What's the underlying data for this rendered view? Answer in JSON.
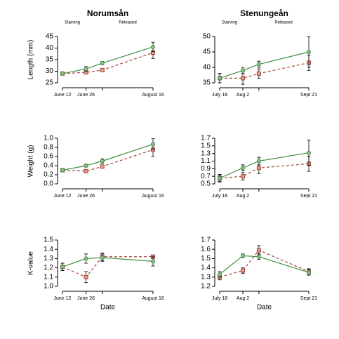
{
  "chart_data": [
    {
      "type": "line",
      "title": "Norumsån",
      "annotations": [
        "Starving",
        "Released"
      ],
      "ylabel": "Length (mm)",
      "categories": [
        "June 12",
        "June 26",
        null,
        "August 16"
      ],
      "series": [
        {
          "color": "#3f8f3f",
          "marker": "circle",
          "dashed": false,
          "values": [
            29,
            31,
            33.5,
            40.5
          ],
          "errors": [
            0.5,
            1,
            0.7,
            2
          ]
        },
        {
          "color": "#a4453c",
          "marker": "square",
          "dashed": true,
          "values": [
            29,
            29.5,
            30.5,
            38
          ],
          "errors": [
            0.5,
            0.7,
            0.7,
            2.5
          ]
        }
      ],
      "ylim": [
        25,
        45
      ],
      "yticks": [
        25,
        30,
        35,
        40,
        45
      ]
    },
    {
      "type": "line",
      "title": "Stenungeån",
      "annotations": [
        "Starving",
        "Released"
      ],
      "categories": [
        "July 18",
        "Aug 2",
        null,
        "Sept 21"
      ],
      "series": [
        {
          "color": "#3f8f3f",
          "marker": "circle",
          "dashed": false,
          "values": [
            36.5,
            39,
            41,
            45
          ],
          "errors": [
            1.5,
            1,
            1,
            5
          ]
        },
        {
          "color": "#a4453c",
          "marker": "square",
          "dashed": true,
          "values": [
            36.5,
            36.5,
            38,
            41.5
          ],
          "errors": [
            1.5,
            2,
            1.5,
            2.5
          ]
        }
      ],
      "ylim": [
        35,
        50
      ],
      "yticks": [
        35,
        40,
        45,
        50
      ]
    },
    {
      "type": "line",
      "ylabel": "Weight (g)",
      "categories": [
        "June 12",
        "June 26",
        null,
        "August 16"
      ],
      "series": [
        {
          "color": "#3f8f3f",
          "marker": "circle",
          "dashed": false,
          "values": [
            0.3,
            0.4,
            0.5,
            0.87
          ],
          "errors": [
            0.03,
            0.03,
            0.05,
            0.12
          ]
        },
        {
          "color": "#a4453c",
          "marker": "square",
          "dashed": true,
          "values": [
            0.3,
            0.28,
            0.38,
            0.75
          ],
          "errors": [
            0.03,
            0.03,
            0.03,
            0.15
          ]
        }
      ],
      "ylim": [
        0,
        1
      ],
      "yticks": [
        {
          "value": 0,
          "label": "0.0"
        },
        0.2,
        0.4,
        0.6,
        0.8,
        {
          "value": 1,
          "label": "1.0"
        }
      ]
    },
    {
      "type": "line",
      "categories": [
        "July 18",
        "Aug 2",
        null,
        "Sept 21"
      ],
      "series": [
        {
          "color": "#3f8f3f",
          "marker": "circle",
          "dashed": false,
          "values": [
            0.65,
            0.92,
            1.1,
            1.32
          ],
          "errors": [
            0.1,
            0.08,
            0.1,
            0.33
          ]
        },
        {
          "color": "#a4453c",
          "marker": "square",
          "dashed": true,
          "values": [
            0.65,
            0.7,
            0.92,
            1.03
          ],
          "errors": [
            0.08,
            0.1,
            0.15,
            0.2
          ]
        }
      ],
      "ylim": [
        0.5,
        1.7
      ],
      "yticks": [
        0.5,
        0.7,
        0.9,
        1.1,
        1.3,
        1.5,
        1.7
      ]
    },
    {
      "type": "line",
      "ylabel": "K-value",
      "xlabel": "Date",
      "categories": [
        "June 12",
        "June 26",
        null,
        "August 16"
      ],
      "series": [
        {
          "color": "#3f8f3f",
          "marker": "circle",
          "dashed": false,
          "values": [
            1.21,
            1.3,
            1.31,
            1.27
          ],
          "errors": [
            0.04,
            0.05,
            0.04,
            0.05
          ]
        },
        {
          "color": "#a4453c",
          "marker": "square",
          "dashed": true,
          "values": [
            1.21,
            1.1,
            1.32,
            1.32
          ],
          "errors": [
            0.04,
            0.06,
            0.04,
            0.02
          ]
        }
      ],
      "ylim": [
        1,
        1.5
      ],
      "yticks": [
        {
          "value": 1,
          "label": "1.0"
        },
        1.1,
        1.2,
        1.3,
        1.4,
        1.5
      ]
    },
    {
      "type": "line",
      "xlabel": "Date",
      "categories": [
        "July 18",
        "Aug 2",
        null,
        "Sept 21"
      ],
      "series": [
        {
          "color": "#3f8f3f",
          "marker": "circle",
          "dashed": false,
          "values": [
            1.33,
            1.53,
            1.52,
            1.35
          ],
          "errors": [
            0.03,
            0.02,
            0.03,
            0.03
          ]
        },
        {
          "color": "#a4453c",
          "marker": "square",
          "dashed": true,
          "values": [
            1.3,
            1.37,
            1.59,
            1.36
          ],
          "errors": [
            0.03,
            0.03,
            0.05,
            0.03
          ]
        }
      ],
      "ylim": [
        1.2,
        1.7
      ],
      "yticks": [
        1.2,
        1.3,
        1.4,
        1.5,
        1.6,
        1.7
      ]
    }
  ]
}
